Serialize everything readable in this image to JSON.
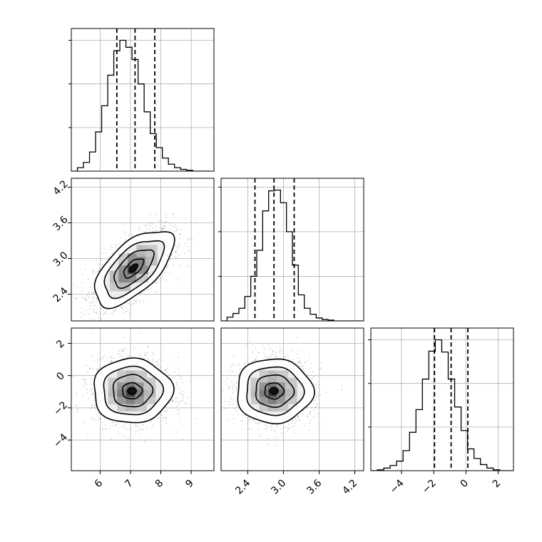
{
  "chart_data": {
    "type": "corner",
    "title": "",
    "parameters": [
      {
        "index": 0,
        "range": [
          5.05,
          9.75
        ],
        "ticks": [
          6,
          7,
          8,
          9
        ],
        "tick_labels": [
          "6",
          "7",
          "8",
          "9"
        ],
        "quantiles": [
          6.55,
          7.15,
          7.8
        ],
        "hist_edges_start": 5.05,
        "hist_bin_width": 0.2,
        "hist_counts": [
          0,
          4,
          10,
          22,
          45,
          75,
          110,
          138,
          150,
          142,
          128,
          100,
          68,
          43,
          27,
          15,
          8,
          4,
          2,
          1,
          0,
          0,
          0
        ],
        "hist_grid_lines": [
          50,
          100,
          150
        ]
      },
      {
        "index": 1,
        "range": [
          1.95,
          4.35
        ],
        "ticks": [
          2.4,
          3.0,
          3.6,
          4.2
        ],
        "tick_labels": [
          "2.4",
          "3.0",
          "3.6",
          "4.2"
        ],
        "quantiles": [
          2.52,
          2.84,
          3.18
        ],
        "hist_edges_start": 1.95,
        "hist_bin_width": 0.1,
        "hist_counts": [
          0,
          5,
          10,
          17,
          33,
          60,
          95,
          148,
          175,
          176,
          159,
          120,
          75,
          35,
          17,
          9,
          4,
          2,
          1,
          0,
          0,
          0,
          0,
          0
        ],
        "hist_grid_lines": [
          60,
          120,
          180
        ]
      },
      {
        "index": 2,
        "range": [
          -5.9,
          2.95
        ],
        "ticks": [
          -4,
          -2,
          0,
          2
        ],
        "tick_labels": [
          "−4",
          "−2",
          "0",
          "2"
        ],
        "quantiles": [
          -1.95,
          -0.92,
          0.12
        ],
        "hist_edges_start": -5.9,
        "hist_bin_width": 0.4,
        "hist_counts": [
          0,
          1,
          3,
          6,
          11,
          23,
          44,
          70,
          105,
          137,
          150,
          136,
          105,
          73,
          46,
          25,
          14,
          7,
          3,
          1,
          0,
          0
        ],
        "hist_grid_lines": [
          50,
          100,
          150
        ]
      }
    ],
    "pairs": [
      {
        "row": 1,
        "col": 0,
        "mean": [
          7.1,
          2.84
        ],
        "sd": [
          0.65,
          0.32
        ],
        "rho": 0.62
      },
      {
        "row": 2,
        "col": 0,
        "mean": [
          7.05,
          -0.95
        ],
        "sd": [
          0.65,
          1.0
        ],
        "rho": 0.0
      },
      {
        "row": 2,
        "col": 1,
        "mean": [
          2.84,
          -0.95
        ],
        "sd": [
          0.32,
          1.0
        ],
        "rho": 0.0
      }
    ],
    "contour_levels_sigma": [
      0.5,
      1.0,
      1.5,
      2.0
    ],
    "grid": true,
    "colors": {
      "line": "#000000",
      "grid": "#b0b0b0",
      "points": "#808080",
      "frame": "#000000"
    }
  }
}
